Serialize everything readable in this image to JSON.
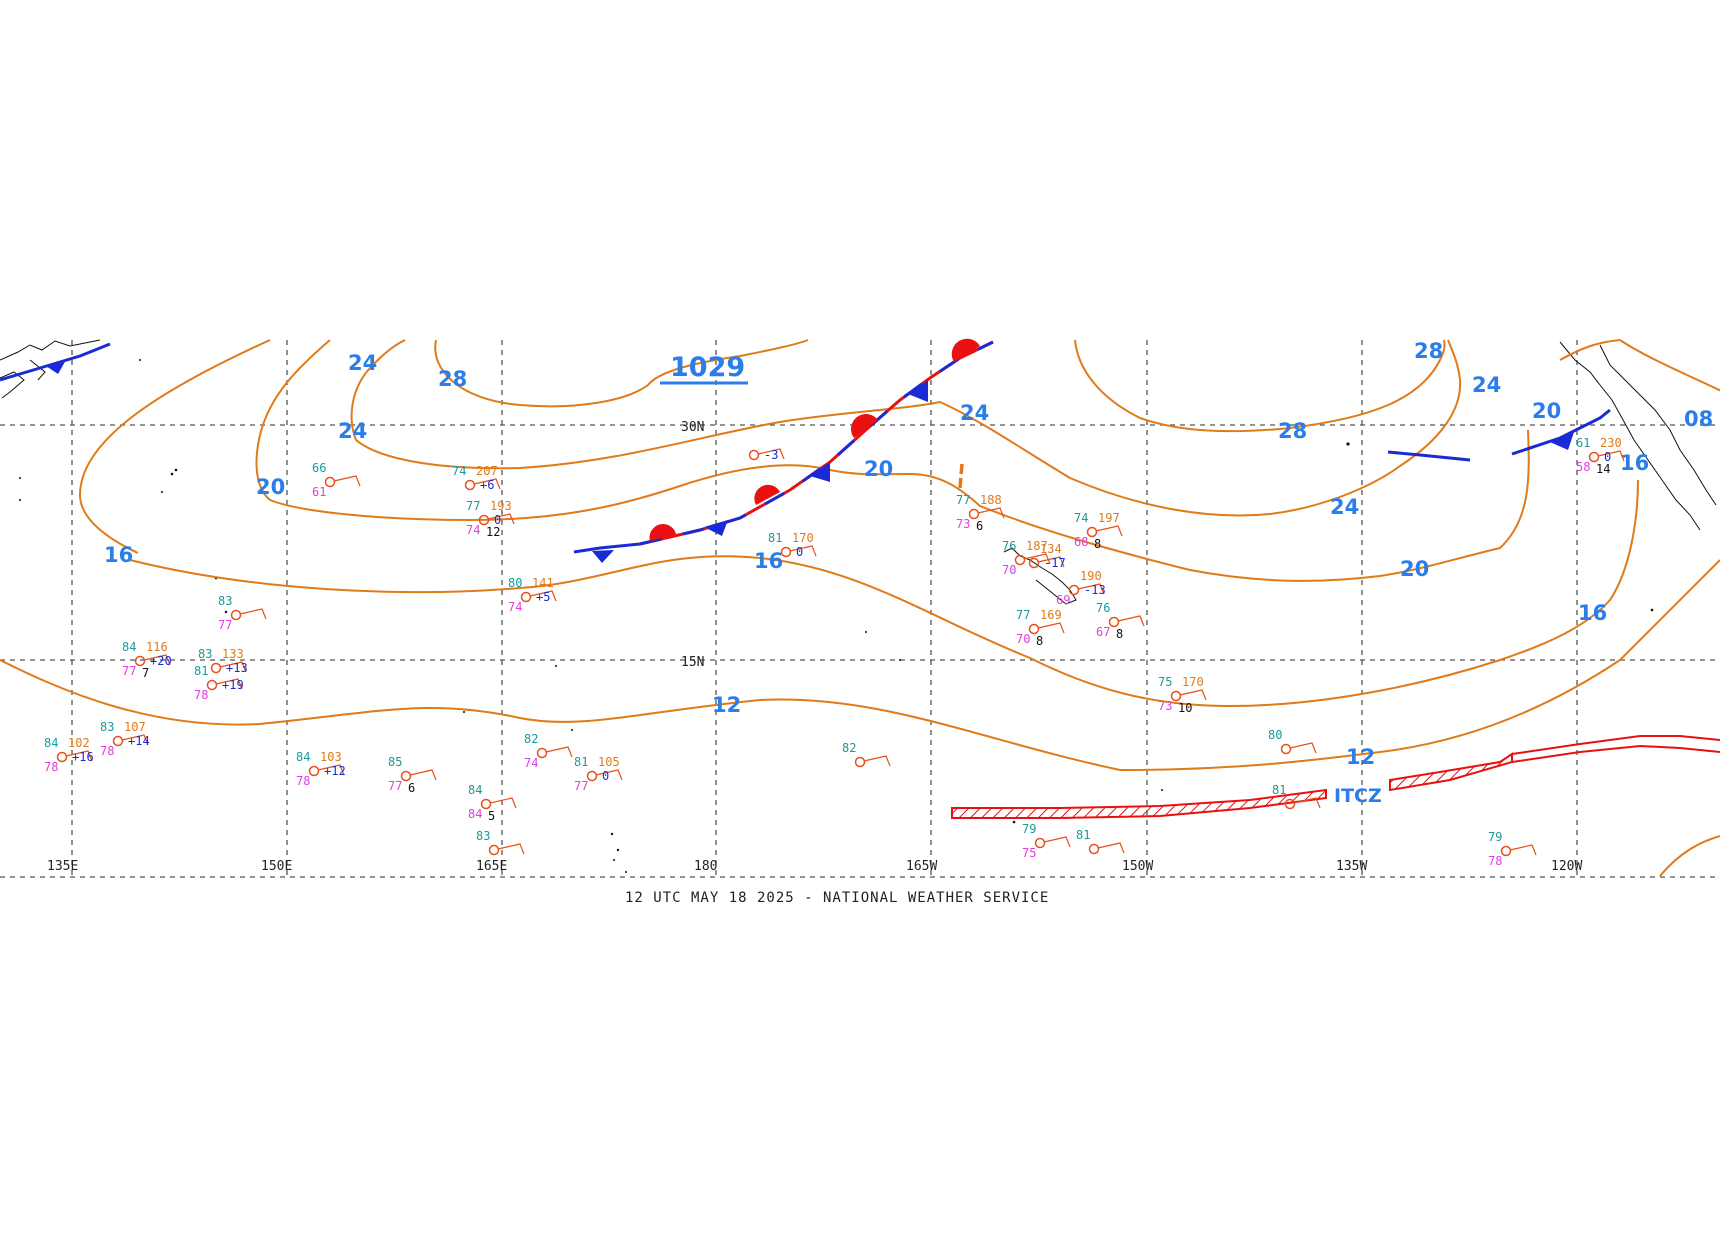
{
  "footer": "12 UTC MAY 18 2025 - NATIONAL WEATHER SERVICE",
  "high_center": {
    "label": "1029"
  },
  "itcz_label": "ITCZ",
  "colors": {
    "isobar": "#e07a1a",
    "label": "#2b7de9",
    "cold_front": "#1a2bd6",
    "warm_front": "#e81010",
    "itcz": "#e81010",
    "station_temp": "#1a9a9a",
    "station_dew": "#e040e0",
    "station_press": "#e07a1a"
  },
  "axes": {
    "longitudes": [
      "135E",
      "150E",
      "165E",
      "180",
      "165W",
      "150W",
      "135W",
      "120W"
    ],
    "latitudes": [
      "30N",
      "15N"
    ]
  },
  "isobar_labels": [
    "28",
    "24",
    "24",
    "20",
    "20",
    "16",
    "16",
    "12",
    "12",
    "1029",
    "28",
    "24",
    "24",
    "20",
    "20",
    "16",
    "28",
    "24",
    "20",
    "16",
    "08"
  ],
  "stations": [
    {
      "temp": "74",
      "dew": "",
      "press": "207",
      "trend": "+6"
    },
    {
      "temp": "77",
      "dew": "74",
      "press": "193",
      "trend": "0",
      "wx": "12"
    },
    {
      "temp": "66",
      "dew": "61",
      "press": "",
      "trend": ""
    },
    {
      "temp": "",
      "dew": "",
      "press": "",
      "trend": "-3"
    },
    {
      "temp": "81",
      "dew": "",
      "press": "170",
      "trend": "0"
    },
    {
      "temp": "80",
      "dew": "74",
      "press": "141",
      "trend": "+5"
    },
    {
      "temp": "83",
      "dew": "77",
      "press": "",
      "trend": ""
    },
    {
      "temp": "84",
      "dew": "77",
      "press": "116",
      "trend": "+20",
      "wx": "7"
    },
    {
      "temp": "83",
      "dew": "",
      "press": "133",
      "trend": "+13"
    },
    {
      "temp": "81",
      "dew": "78",
      "press": "",
      "trend": "+19"
    },
    {
      "temp": "84",
      "dew": "78",
      "press": "102",
      "trend": "+16"
    },
    {
      "temp": "83",
      "dew": "78",
      "press": "107",
      "trend": "+14"
    },
    {
      "temp": "84",
      "dew": "78",
      "press": "103",
      "trend": "+12"
    },
    {
      "temp": "85",
      "dew": "77",
      "press": "",
      "trend": "",
      "wx": "6"
    },
    {
      "temp": "82",
      "dew": "74",
      "press": "",
      "trend": ""
    },
    {
      "temp": "81",
      "dew": "77",
      "press": "105",
      "trend": "0"
    },
    {
      "temp": "84",
      "dew": "84",
      "press": "",
      "trend": "",
      "wx": "5"
    },
    {
      "temp": "83",
      "dew": "",
      "press": "",
      "trend": ""
    },
    {
      "temp": "77",
      "dew": "73",
      "press": "188",
      "trend": "",
      "wx": "6"
    },
    {
      "temp": "76",
      "dew": "70",
      "press": "187",
      "trend": ""
    },
    {
      "temp": "74",
      "dew": "68",
      "press": "197",
      "trend": "",
      "wx": "8"
    },
    {
      "temp": "",
      "dew": "",
      "press": "134",
      "trend": "-17"
    },
    {
      "temp": "",
      "dew": "69",
      "press": "190",
      "trend": "-13"
    },
    {
      "temp": "77",
      "dew": "70",
      "press": "169",
      "trend": "",
      "wx": "8"
    },
    {
      "temp": "76",
      "dew": "67",
      "press": "",
      "trend": "",
      "wx": "8"
    },
    {
      "temp": "75",
      "dew": "73",
      "press": "170",
      "trend": "",
      "wx": "10"
    },
    {
      "temp": "80",
      "dew": "",
      "press": "",
      "trend": ""
    },
    {
      "temp": "82",
      "dew": "",
      "press": "",
      "trend": ""
    },
    {
      "temp": "81",
      "dew": "",
      "press": "",
      "trend": ""
    },
    {
      "temp": "79",
      "dew": "75",
      "press": "",
      "trend": ""
    },
    {
      "temp": "81",
      "dew": "",
      "press": "",
      "trend": ""
    },
    {
      "temp": "79",
      "dew": "78",
      "press": "",
      "trend": ""
    },
    {
      "temp": "61",
      "dew": "58",
      "press": "230",
      "trend": "0",
      "wx": "14"
    }
  ]
}
